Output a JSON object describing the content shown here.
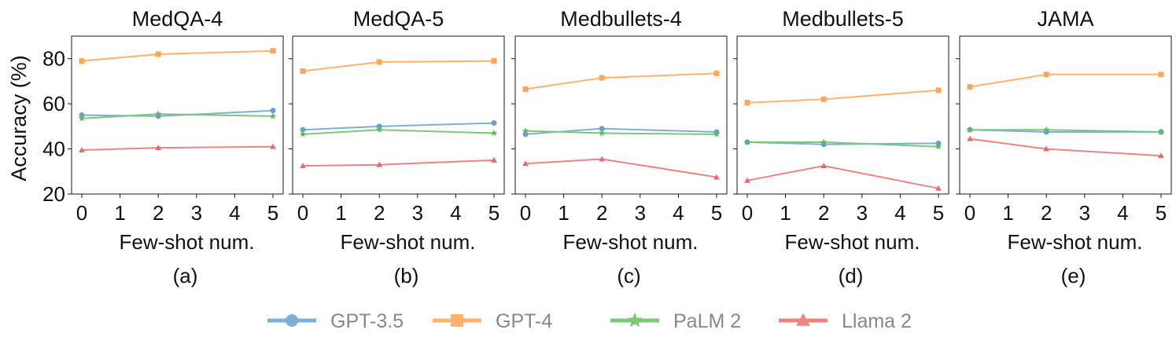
{
  "chart_data": [
    {
      "type": "line",
      "title": "MedQA-4",
      "caption": "(a)",
      "xlabel": "Few-shot num.",
      "ylabel": "Accuracy (%)",
      "x_ticks": [
        "0",
        "1",
        "2",
        "3",
        "4",
        "5"
      ],
      "y_ticks": [
        "20",
        "40",
        "60",
        "80"
      ],
      "ylim": [
        20,
        90
      ],
      "x": [
        0,
        2,
        5
      ],
      "series": [
        {
          "name": "GPT-3.5",
          "values": [
            55,
            54.5,
            57
          ]
        },
        {
          "name": "GPT-4",
          "values": [
            79,
            82,
            83.5
          ]
        },
        {
          "name": "PaLM 2",
          "values": [
            53.5,
            55.5,
            54.5
          ]
        },
        {
          "name": "Llama 2",
          "values": [
            39.5,
            40.5,
            41
          ]
        }
      ]
    },
    {
      "type": "line",
      "title": "MedQA-5",
      "caption": "(b)",
      "xlabel": "Few-shot num.",
      "ylabel": "",
      "x_ticks": [
        "0",
        "1",
        "2",
        "3",
        "4",
        "5"
      ],
      "y_ticks": [],
      "ylim": [
        20,
        90
      ],
      "x": [
        0,
        2,
        5
      ],
      "series": [
        {
          "name": "GPT-3.5",
          "values": [
            48.5,
            50,
            51.5
          ]
        },
        {
          "name": "GPT-4",
          "values": [
            74.5,
            78.5,
            79
          ]
        },
        {
          "name": "PaLM 2",
          "values": [
            46.5,
            48.5,
            47
          ]
        },
        {
          "name": "Llama 2",
          "values": [
            32.5,
            33,
            35
          ]
        }
      ]
    },
    {
      "type": "line",
      "title": "Medbullets-4",
      "caption": "(c)",
      "xlabel": "Few-shot num.",
      "ylabel": "",
      "x_ticks": [
        "0",
        "1",
        "2",
        "3",
        "4",
        "5"
      ],
      "y_ticks": [],
      "ylim": [
        20,
        90
      ],
      "x": [
        0,
        2,
        5
      ],
      "series": [
        {
          "name": "GPT-3.5",
          "values": [
            46.5,
            49,
            47.5
          ]
        },
        {
          "name": "GPT-4",
          "values": [
            66.5,
            71.5,
            73.5
          ]
        },
        {
          "name": "PaLM 2",
          "values": [
            48,
            47,
            46.5
          ]
        },
        {
          "name": "Llama 2",
          "values": [
            33.5,
            35.5,
            27.5
          ]
        }
      ]
    },
    {
      "type": "line",
      "title": "Medbullets-5",
      "caption": "(d)",
      "xlabel": "Few-shot num.",
      "ylabel": "",
      "x_ticks": [
        "0",
        "1",
        "2",
        "3",
        "4",
        "5"
      ],
      "y_ticks": [],
      "ylim": [
        20,
        90
      ],
      "x": [
        0,
        2,
        5
      ],
      "series": [
        {
          "name": "GPT-3.5",
          "values": [
            43,
            42,
            42.5
          ]
        },
        {
          "name": "GPT-4",
          "values": [
            60.5,
            62,
            66
          ]
        },
        {
          "name": "PaLM 2",
          "values": [
            43,
            43,
            41
          ]
        },
        {
          "name": "Llama 2",
          "values": [
            26,
            32.5,
            22.5
          ]
        }
      ]
    },
    {
      "type": "line",
      "title": "JAMA",
      "caption": "(e)",
      "xlabel": "Few-shot num.",
      "ylabel": "",
      "x_ticks": [
        "0",
        "1",
        "2",
        "3",
        "4",
        "5"
      ],
      "y_ticks": [],
      "ylim": [
        20,
        90
      ],
      "x": [
        0,
        2,
        5
      ],
      "series": [
        {
          "name": "GPT-3.5",
          "values": [
            48.5,
            47.5,
            47.5
          ]
        },
        {
          "name": "GPT-4",
          "values": [
            67.5,
            73,
            73
          ]
        },
        {
          "name": "PaLM 2",
          "values": [
            48.5,
            48.5,
            47.5
          ]
        },
        {
          "name": "Llama 2",
          "values": [
            44.5,
            40,
            37
          ]
        }
      ]
    }
  ],
  "legend": {
    "placement": "bottom",
    "items": [
      {
        "name": "GPT-3.5",
        "color": "#7fb1d8",
        "marker": "circle"
      },
      {
        "name": "GPT-4",
        "color": "#fdb36e",
        "marker": "square"
      },
      {
        "name": "PaLM 2",
        "color": "#7dc87c",
        "marker": "star"
      },
      {
        "name": "Llama 2",
        "color": "#ee8383",
        "marker": "triangle"
      }
    ]
  },
  "series_colors": {
    "GPT-3.5": "#7fb1d8",
    "GPT-4": "#fdb36e",
    "PaLM 2": "#7dc87c",
    "Llama 2": "#ee8383"
  },
  "series_marker_colors": {
    "GPT-3.5": "#6a9fcf",
    "GPT-4": "#fca65a",
    "PaLM 2": "#5dbb5b",
    "Llama 2": "#e36b6b"
  }
}
